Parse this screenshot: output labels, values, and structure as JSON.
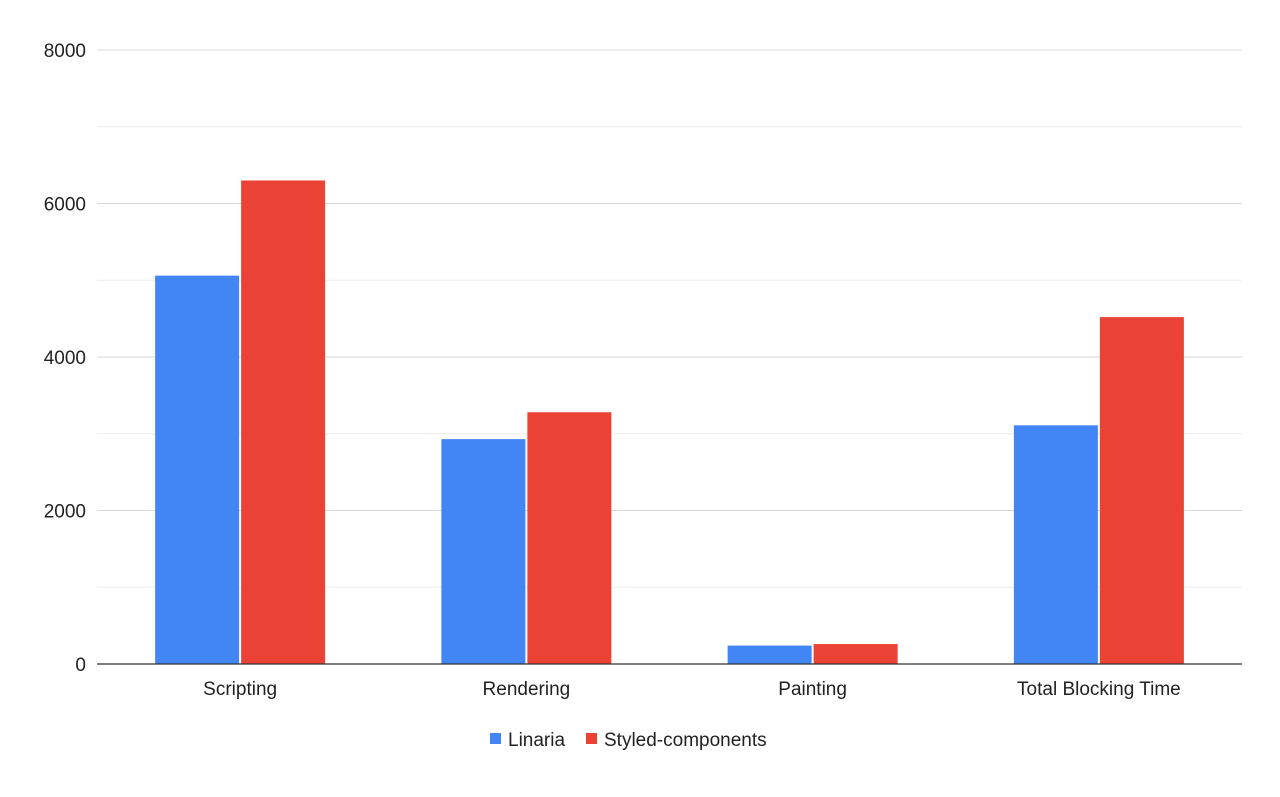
{
  "chart_data": {
    "type": "bar",
    "title": "",
    "xlabel": "",
    "ylabel": "",
    "categories": [
      "Scripting",
      "Rendering",
      "Painting",
      "Total Blocking Time"
    ],
    "series": [
      {
        "name": "Linaria",
        "color": "#4285f4",
        "values": [
          5060,
          2930,
          240,
          3110
        ]
      },
      {
        "name": "Styled-components",
        "color": "#ea4335",
        "values": [
          6300,
          3280,
          260,
          4520
        ]
      }
    ],
    "ylim": [
      0,
      8000
    ],
    "yticks": [
      "0",
      "2000",
      "4000",
      "6000",
      "8000"
    ],
    "minor_gridlines": true,
    "grid": true,
    "legend": "bottom"
  }
}
